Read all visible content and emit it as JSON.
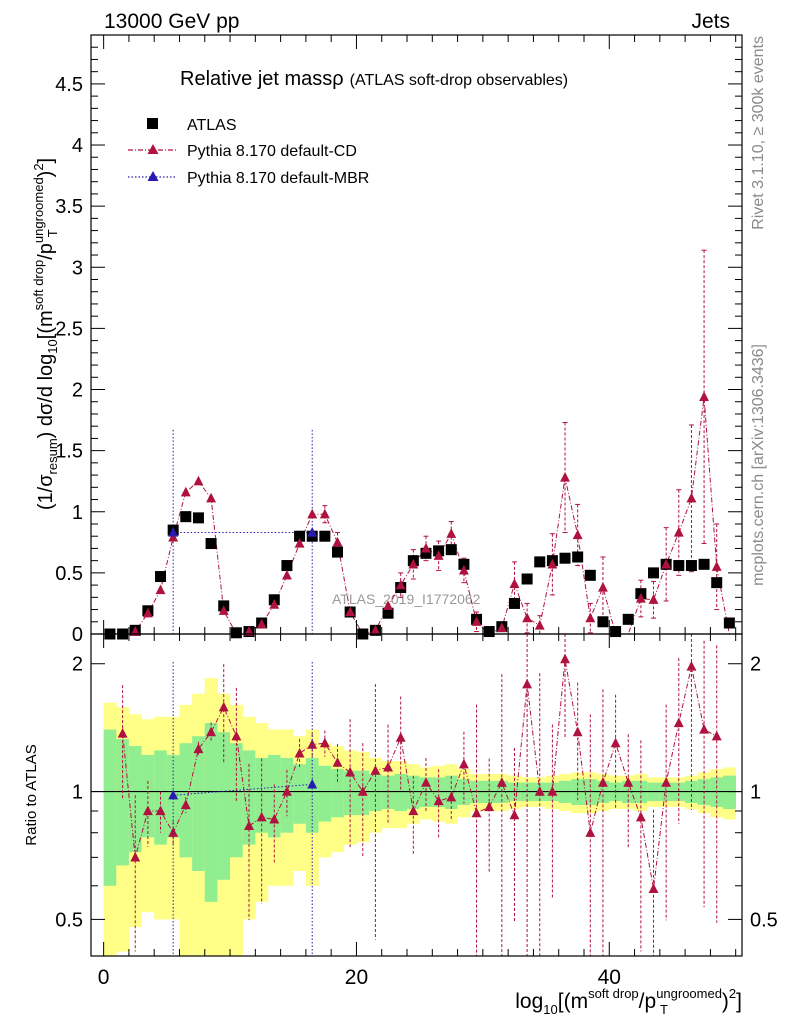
{
  "header": {
    "energy_label": "13000 GeV pp",
    "category_label": "Jets"
  },
  "chart_data": {
    "type": "scatter",
    "title_main": "Relative jet massρ",
    "title_sub": "(ATLAS soft-drop observables)",
    "watermark": "ATLAS_2019_I1772062",
    "side_label_top": "Rivet 3.1.10, ≥ 300k events",
    "side_label_bottom": "mcplots.cern.ch [arXiv:1306.3436]",
    "ylabel": {
      "pre": "(1/σ",
      "sub1": "resum",
      "mid": ") dσ/d log",
      "sub2": "10",
      "mid2": "[(m",
      "sup1": "soft drop",
      "mid3": "/p",
      "sup2": "ungroomed",
      "sub3": "T",
      "post": ")",
      "sup3": "2",
      "end": "]"
    },
    "xlabel": {
      "pre": "log",
      "sub1": "10",
      "mid": "[(m",
      "sup1": "soft drop",
      "mid2": "/p",
      "sup2": "ungroomed",
      "sub2": "T",
      "post": ")",
      "sup3": "2",
      "end": "]"
    },
    "ratio_ylabel": "Ratio to ATLAS",
    "xlim": [
      -1,
      50.5
    ],
    "ylim_main": [
      0,
      4.9
    ],
    "ylim_ratio": [
      0.41,
      2.35
    ],
    "x_ticks": [
      0,
      20,
      40
    ],
    "y_ticks_main": [
      "0",
      "0.5",
      "1",
      "1.5",
      "2",
      "2.5",
      "3",
      "3.5",
      "4",
      "4.5"
    ],
    "y_ticks_ratio": [
      "0.5",
      "1",
      "2"
    ],
    "legend": [
      {
        "name": "ATLAS",
        "color": "#000000",
        "marker": "square"
      },
      {
        "name": "Pythia 8.170 default-CD",
        "color": "#b0123f",
        "marker": "triangle"
      },
      {
        "name": "Pythia 8.170 default-MBR",
        "color": "#2a1bb0",
        "marker": "triangle"
      }
    ],
    "atlas_values": [
      0.0,
      0.0,
      0.03,
      0.19,
      0.47,
      0.85,
      0.96,
      0.95,
      0.74,
      0.23,
      0.01,
      0.02,
      0.09,
      0.28,
      0.56,
      0.8,
      0.8,
      0.8,
      0.67,
      0.18,
      0.0,
      0.03,
      0.17,
      0.38,
      0.6,
      0.66,
      0.68,
      0.69,
      0.57,
      0.12,
      0.02,
      0.06,
      0.25,
      0.45,
      0.59,
      0.6,
      0.62,
      0.63,
      0.48,
      0.1,
      0.02,
      0.12,
      0.33,
      0.5,
      0.57,
      0.56,
      0.56,
      0.57,
      0.42,
      0.09
    ],
    "cd_values": [
      0.0,
      0.0,
      0.02,
      0.17,
      0.36,
      0.79,
      1.16,
      1.25,
      1.11,
      0.19,
      0.0,
      0.02,
      0.08,
      0.24,
      0.48,
      0.74,
      0.98,
      0.98,
      0.75,
      0.18,
      0.0,
      0.03,
      0.23,
      0.4,
      0.57,
      0.7,
      0.64,
      0.82,
      0.52,
      0.1,
      0.0,
      0.05,
      0.41,
      0.13,
      0.07,
      0.57,
      1.28,
      0.81,
      0.13,
      0.38,
      0.0,
      0.0,
      0.29,
      0.28,
      0.57,
      0.83,
      1.11,
      1.94,
      0.55,
      0.0
    ],
    "cd_errors": [
      0.02,
      0.02,
      0.02,
      0.03,
      0.04,
      0.05,
      0.05,
      0.05,
      0.06,
      0.05,
      0.02,
      0.02,
      0.03,
      0.05,
      0.06,
      0.06,
      0.06,
      0.07,
      0.08,
      0.06,
      0.02,
      0.03,
      0.06,
      0.1,
      0.12,
      0.1,
      0.12,
      0.1,
      0.1,
      0.08,
      0.03,
      0.04,
      0.18,
      0.12,
      0.08,
      0.25,
      0.45,
      0.25,
      0.12,
      0.25,
      0.05,
      0.05,
      0.15,
      0.15,
      0.3,
      0.35,
      0.6,
      1.2,
      0.35,
      0.05
    ],
    "mbr_bins": [
      {
        "x": 5.5,
        "value": 0.83,
        "error": 0.84
      },
      {
        "x": 16.5,
        "value": 0.83,
        "error": 0.84
      }
    ],
    "cd_ratio": [
      null,
      1.37,
      0.7,
      0.9,
      0.9,
      0.8,
      0.93,
      1.26,
      1.38,
      1.58,
      1.35,
      0.83,
      0.87,
      0.86,
      1.0,
      1.23,
      1.29,
      1.3,
      1.17,
      1.11,
      1.0,
      1.12,
      1.14,
      1.34,
      0.9,
      1.05,
      0.95,
      0.97,
      1.16,
      0.89,
      0.92,
      1.05,
      0.88,
      1.79,
      1.0,
      1.0,
      2.05,
      1.38,
      0.8,
      1.05,
      1.3,
      1.05,
      0.87,
      0.59,
      1.05,
      1.45,
      1.97,
      1.4,
      1.35,
      null
    ],
    "mbr_ratio": [
      {
        "x": 5.5,
        "value": 0.98
      },
      {
        "x": 16.5,
        "value": 1.04
      }
    ],
    "band_green_half": [
      0.4,
      0.33,
      0.28,
      0.22,
      0.25,
      0.22,
      0.3,
      0.35,
      0.45,
      0.38,
      0.3,
      0.25,
      0.2,
      0.22,
      0.2,
      0.16,
      0.2,
      0.15,
      0.13,
      0.12,
      0.12,
      0.1,
      0.09,
      0.1,
      0.09,
      0.08,
      0.08,
      0.09,
      0.07,
      0.06,
      0.06,
      0.06,
      0.05,
      0.05,
      0.05,
      0.05,
      0.06,
      0.07,
      0.07,
      0.06,
      0.05,
      0.06,
      0.06,
      0.05,
      0.05,
      0.05,
      0.06,
      0.07,
      0.08,
      0.09
    ],
    "band_yellow_half": [
      0.62,
      0.58,
      0.52,
      0.48,
      0.5,
      0.5,
      0.6,
      0.7,
      0.85,
      0.7,
      0.6,
      0.5,
      0.45,
      0.4,
      0.4,
      0.35,
      0.4,
      0.3,
      0.28,
      0.25,
      0.24,
      0.2,
      0.18,
      0.18,
      0.16,
      0.14,
      0.15,
      0.16,
      0.13,
      0.1,
      0.1,
      0.1,
      0.09,
      0.08,
      0.08,
      0.09,
      0.1,
      0.11,
      0.11,
      0.1,
      0.09,
      0.09,
      0.1,
      0.08,
      0.08,
      0.08,
      0.09,
      0.11,
      0.13,
      0.14
    ]
  }
}
